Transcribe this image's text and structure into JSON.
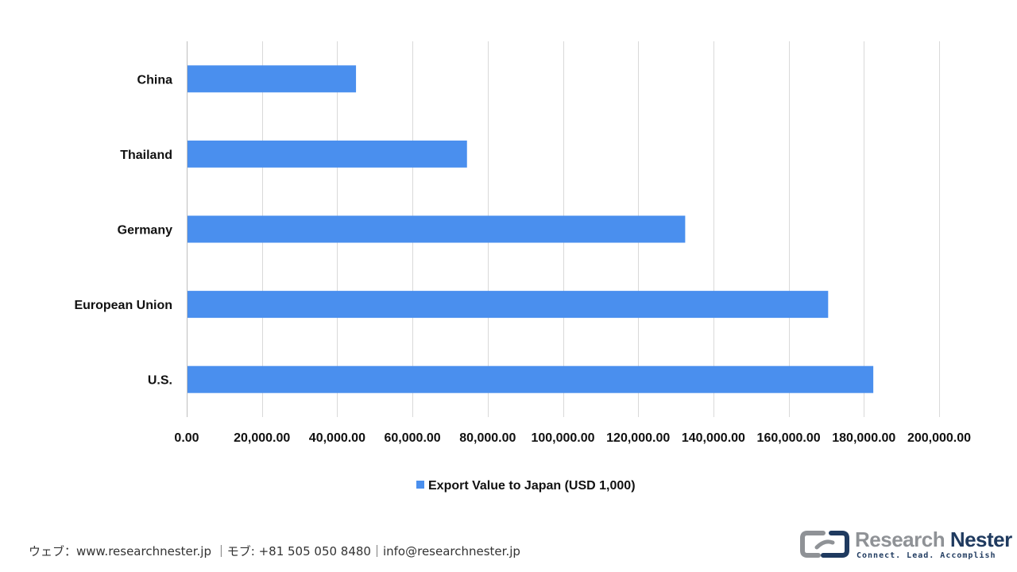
{
  "chart_data": {
    "type": "bar",
    "orientation": "horizontal",
    "categories": [
      "China",
      "Thailand",
      "Germany",
      "European Union",
      "U.S."
    ],
    "series": [
      {
        "name": "Export Value to Japan (USD 1,000)",
        "values": [
          45000,
          74500,
          132500,
          170500,
          182500
        ],
        "color": "#4a8fee"
      }
    ],
    "xlim": [
      0,
      200000
    ],
    "x_ticks": [
      0,
      20000,
      40000,
      60000,
      80000,
      100000,
      120000,
      140000,
      160000,
      180000,
      200000
    ],
    "x_tick_labels": [
      "0.00",
      "20,000.00",
      "40,000.00",
      "60,000.00",
      "80,000.00",
      "100,000.00",
      "120,000.00",
      "140,000.00",
      "160,000.00",
      "180,000.00",
      "200,000.00"
    ],
    "grid": true,
    "legend": "bottom-center",
    "title": "",
    "xlabel": "",
    "ylabel": ""
  },
  "colors": {
    "bar": "#4a8fee",
    "grid": "#d9d9d9",
    "axis": "#bfbfbf"
  },
  "footer": {
    "contact": "ウェブ：www.researchnester.jp ｜モブ: +81 505 050 8480｜info@researchnester.jp"
  },
  "logo": {
    "word_research": "Research",
    "word_nester": "Nester",
    "tagline": "Connect. Lead. Accomplish",
    "icon": "research-nester-logo-icon"
  }
}
